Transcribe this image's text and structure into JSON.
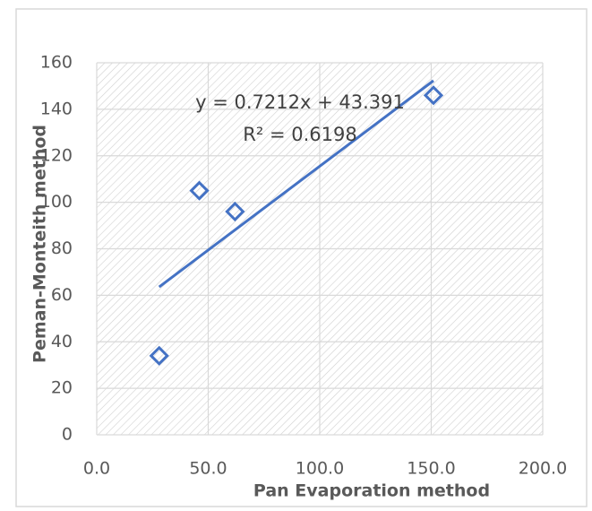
{
  "chart_data": {
    "type": "scatter",
    "x_label": "Pan Evaporation method",
    "y_label": "Peman-Monteith method",
    "series": [
      {
        "color": "#4472c4",
        "x": [
          28,
          46,
          62,
          151
        ],
        "values": [
          34,
          105,
          96,
          146
        ]
      }
    ],
    "trendline": {
      "equation": "y = 0.7212x + 43.391",
      "r_squared": "R² = 0.6198",
      "slope": 0.7212,
      "intercept": 43.391,
      "color": "#4472c4"
    },
    "xlim": [
      0,
      200
    ],
    "xticks": [
      {
        "value": 0,
        "label": "0.0"
      },
      {
        "value": 50,
        "label": "50.0"
      },
      {
        "value": 100,
        "label": "100.0"
      },
      {
        "value": 150,
        "label": "150.0"
      },
      {
        "value": 200,
        "label": "200.0"
      }
    ],
    "ylim": [
      0,
      160
    ],
    "yticks": [
      0,
      20,
      40,
      60,
      80,
      100,
      120,
      140,
      160
    ],
    "grid": true
  }
}
